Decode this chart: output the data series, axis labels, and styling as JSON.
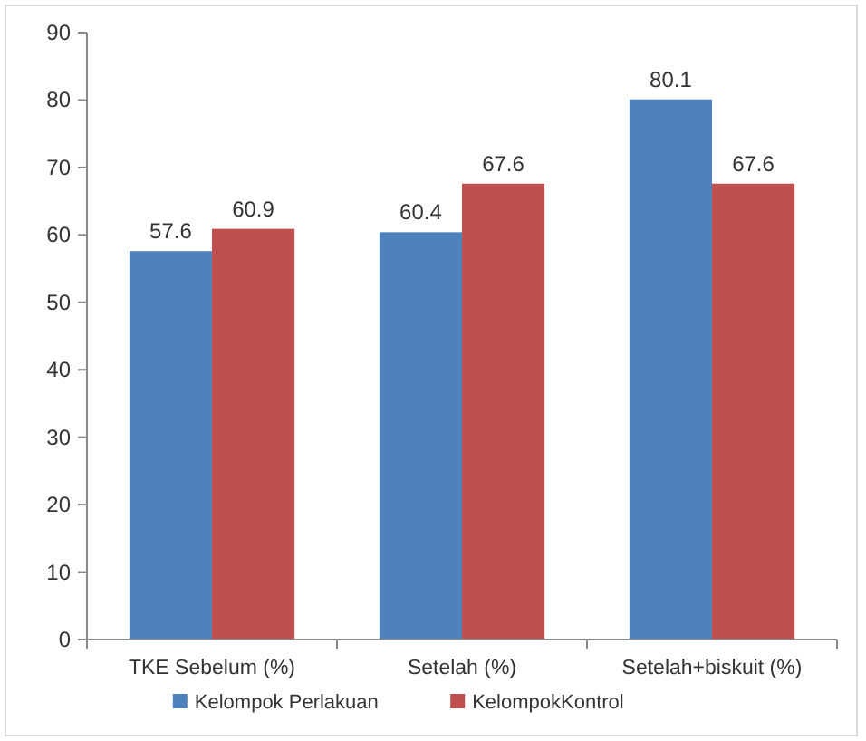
{
  "chart_data": {
    "type": "bar",
    "categories": [
      "TKE Sebelum (%)",
      "Setelah (%)",
      "Setelah+biskuit (%)"
    ],
    "series": [
      {
        "name": "Kelompok Perlakuan",
        "color": "#4f81bd",
        "values": [
          57.6,
          60.4,
          80.1
        ]
      },
      {
        "name": "KelompokKontrol",
        "color": "#c0504d",
        "values": [
          60.9,
          67.6,
          67.6
        ]
      }
    ],
    "ylim": [
      0,
      90
    ],
    "yticks": [
      0,
      10,
      20,
      30,
      40,
      50,
      60,
      70,
      80,
      90
    ],
    "grid": false,
    "legend": "bottom",
    "data_labels": true
  }
}
